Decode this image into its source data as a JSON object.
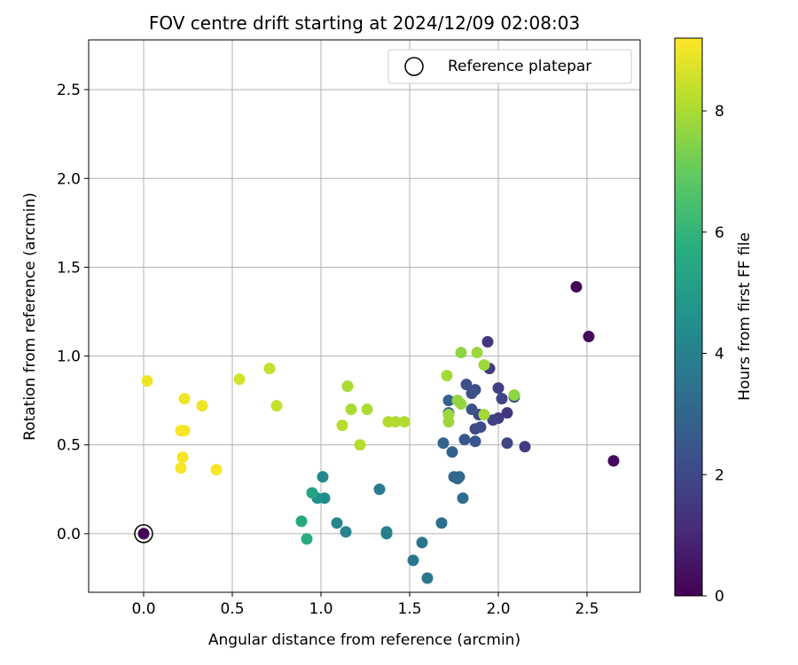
{
  "chart_data": {
    "type": "scatter",
    "title": "FOV centre drift starting at 2024/12/09 02:08:03",
    "xlabel": "Angular distance from reference (arcmin)",
    "ylabel": "Rotation from reference (arcmin)",
    "xlim": [
      -0.31,
      2.8
    ],
    "ylim": [
      -0.33,
      2.78
    ],
    "xticks": [
      "0.0",
      "0.5",
      "1.0",
      "1.5",
      "2.0",
      "2.5"
    ],
    "yticks": [
      "0.0",
      "0.5",
      "1.0",
      "1.5",
      "2.0",
      "2.5"
    ],
    "grid": true,
    "legend": {
      "position": "top-right",
      "entries": [
        "Reference platepar"
      ]
    },
    "colorbar": {
      "label": "Hours from first FF file",
      "colormap": "viridis",
      "range": [
        0,
        9.2
      ],
      "ticks": [
        "0",
        "2",
        "4",
        "6",
        "8"
      ]
    },
    "reference_point": {
      "x": 0.0,
      "y": 0.0
    },
    "points": [
      {
        "x": 2.44,
        "y": 1.39,
        "c": 0.1
      },
      {
        "x": 2.51,
        "y": 1.11,
        "c": 0.2
      },
      {
        "x": 2.65,
        "y": 0.41,
        "c": 0.3
      },
      {
        "x": 1.94,
        "y": 1.08,
        "c": 1.5
      },
      {
        "x": 1.95,
        "y": 0.93,
        "c": 1.6
      },
      {
        "x": 2.0,
        "y": 0.82,
        "c": 1.7
      },
      {
        "x": 2.09,
        "y": 0.77,
        "c": 1.8
      },
      {
        "x": 2.02,
        "y": 0.76,
        "c": 1.9
      },
      {
        "x": 2.05,
        "y": 0.68,
        "c": 1.5
      },
      {
        "x": 2.0,
        "y": 0.65,
        "c": 1.6
      },
      {
        "x": 1.97,
        "y": 0.64,
        "c": 1.7
      },
      {
        "x": 1.89,
        "y": 0.67,
        "c": 2.0
      },
      {
        "x": 1.87,
        "y": 0.59,
        "c": 2.0
      },
      {
        "x": 1.9,
        "y": 0.6,
        "c": 2.1
      },
      {
        "x": 2.05,
        "y": 0.51,
        "c": 1.9
      },
      {
        "x": 2.15,
        "y": 0.49,
        "c": 1.6
      },
      {
        "x": 1.82,
        "y": 0.84,
        "c": 2.2
      },
      {
        "x": 1.87,
        "y": 0.81,
        "c": 2.2
      },
      {
        "x": 1.85,
        "y": 0.79,
        "c": 2.3
      },
      {
        "x": 1.85,
        "y": 0.7,
        "c": 2.3
      },
      {
        "x": 1.87,
        "y": 0.52,
        "c": 2.4
      },
      {
        "x": 1.81,
        "y": 0.53,
        "c": 2.5
      },
      {
        "x": 1.72,
        "y": 0.75,
        "c": 2.8
      },
      {
        "x": 1.72,
        "y": 0.68,
        "c": 2.8
      },
      {
        "x": 1.69,
        "y": 0.51,
        "c": 2.9
      },
      {
        "x": 1.74,
        "y": 0.46,
        "c": 2.9
      },
      {
        "x": 1.75,
        "y": 0.32,
        "c": 3.0
      },
      {
        "x": 1.77,
        "y": 0.31,
        "c": 3.0
      },
      {
        "x": 1.78,
        "y": 0.32,
        "c": 3.1
      },
      {
        "x": 1.8,
        "y": 0.2,
        "c": 3.2
      },
      {
        "x": 1.68,
        "y": 0.06,
        "c": 3.3
      },
      {
        "x": 1.57,
        "y": -0.05,
        "c": 3.5
      },
      {
        "x": 1.52,
        "y": -0.15,
        "c": 3.6
      },
      {
        "x": 1.6,
        "y": -0.25,
        "c": 3.6
      },
      {
        "x": 1.33,
        "y": 0.25,
        "c": 3.8
      },
      {
        "x": 1.37,
        "y": 0.01,
        "c": 3.9
      },
      {
        "x": 1.37,
        "y": 0.0,
        "c": 4.0
      },
      {
        "x": 1.14,
        "y": 0.01,
        "c": 4.1
      },
      {
        "x": 1.09,
        "y": 0.06,
        "c": 4.2
      },
      {
        "x": 1.01,
        "y": 0.32,
        "c": 4.3
      },
      {
        "x": 1.02,
        "y": 0.2,
        "c": 4.4
      },
      {
        "x": 0.98,
        "y": 0.2,
        "c": 4.6
      },
      {
        "x": 0.95,
        "y": 0.23,
        "c": 5.3
      },
      {
        "x": 0.89,
        "y": 0.07,
        "c": 5.6
      },
      {
        "x": 0.92,
        "y": -0.03,
        "c": 5.7
      },
      {
        "x": 1.79,
        "y": 1.02,
        "c": 7.6
      },
      {
        "x": 1.88,
        "y": 1.02,
        "c": 7.8
      },
      {
        "x": 1.71,
        "y": 0.89,
        "c": 7.9
      },
      {
        "x": 1.92,
        "y": 0.95,
        "c": 7.8
      },
      {
        "x": 2.09,
        "y": 0.78,
        "c": 7.6
      },
      {
        "x": 1.77,
        "y": 0.75,
        "c": 7.6
      },
      {
        "x": 1.79,
        "y": 0.73,
        "c": 7.7
      },
      {
        "x": 1.72,
        "y": 0.67,
        "c": 7.8
      },
      {
        "x": 1.72,
        "y": 0.63,
        "c": 7.8
      },
      {
        "x": 1.92,
        "y": 0.67,
        "c": 7.9
      },
      {
        "x": 1.15,
        "y": 0.83,
        "c": 8.0
      },
      {
        "x": 1.17,
        "y": 0.7,
        "c": 8.0
      },
      {
        "x": 1.26,
        "y": 0.7,
        "c": 8.0
      },
      {
        "x": 1.38,
        "y": 0.63,
        "c": 8.1
      },
      {
        "x": 1.42,
        "y": 0.63,
        "c": 8.1
      },
      {
        "x": 1.47,
        "y": 0.63,
        "c": 8.1
      },
      {
        "x": 1.12,
        "y": 0.61,
        "c": 8.2
      },
      {
        "x": 1.22,
        "y": 0.5,
        "c": 8.2
      },
      {
        "x": 0.71,
        "y": 0.93,
        "c": 8.4
      },
      {
        "x": 0.75,
        "y": 0.72,
        "c": 8.4
      },
      {
        "x": 0.54,
        "y": 0.87,
        "c": 8.6
      },
      {
        "x": 0.02,
        "y": 0.86,
        "c": 9.0
      },
      {
        "x": 0.23,
        "y": 0.76,
        "c": 9.0
      },
      {
        "x": 0.33,
        "y": 0.72,
        "c": 9.0
      },
      {
        "x": 0.21,
        "y": 0.58,
        "c": 9.1
      },
      {
        "x": 0.23,
        "y": 0.58,
        "c": 9.1
      },
      {
        "x": 0.22,
        "y": 0.43,
        "c": 9.1
      },
      {
        "x": 0.21,
        "y": 0.37,
        "c": 9.1
      },
      {
        "x": 0.41,
        "y": 0.36,
        "c": 9.1
      },
      {
        "x": 0.0,
        "y": 0.0,
        "c": 0.0
      }
    ]
  }
}
